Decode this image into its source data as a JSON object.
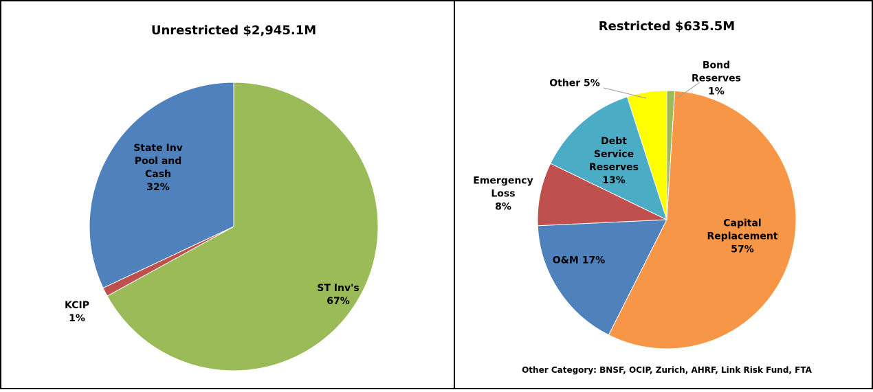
{
  "chart_data": [
    {
      "type": "pie",
      "title": "Unrestricted $2,945.1M",
      "categories": [
        "ST Inv's",
        "KCIP",
        "State Inv Pool and Cash"
      ],
      "values": [
        67,
        1,
        32
      ],
      "value_labels": [
        "67%",
        "1%",
        "32%"
      ],
      "colors": [
        "#9bbb59",
        "#c0504d",
        "#4f81bd"
      ]
    },
    {
      "type": "pie",
      "title": "Restricted $635.5M",
      "categories": [
        "Bond Reserves",
        "Capital Replacement",
        "O&M",
        "Emergency Loss",
        "Debt Service Reserves",
        "Other"
      ],
      "values": [
        1,
        57,
        17,
        8,
        13,
        5
      ],
      "value_labels": [
        "1%",
        "57%",
        "17%",
        "8%",
        "13%",
        "5%"
      ],
      "colors": [
        "#9bbb59",
        "#f79646",
        "#4f81bd",
        "#c0504d",
        "#4bacc6",
        "#ffff00"
      ],
      "annotation": "Other Category: BNSF, OCIP, Zurich, AHRF, Link Risk Fund, FTA"
    }
  ]
}
